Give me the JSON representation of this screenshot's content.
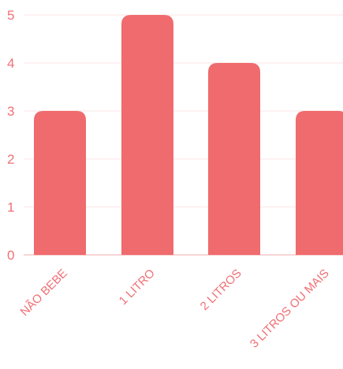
{
  "chart_data": {
    "type": "bar",
    "categories": [
      "NÃO BEBE",
      "1 LITRO",
      "2 LITROS",
      "3 LITROS OU MAIS"
    ],
    "values": [
      3,
      5,
      4,
      3
    ],
    "yticks": [
      0,
      1,
      2,
      3,
      4,
      5
    ],
    "ylim": [
      0,
      5
    ],
    "grid": true,
    "legend": "none",
    "colors": {
      "bar": "#ef6b6e",
      "text": "#f07075",
      "grid": "#fbe6e6",
      "baseline": "#f6c9ca"
    }
  }
}
